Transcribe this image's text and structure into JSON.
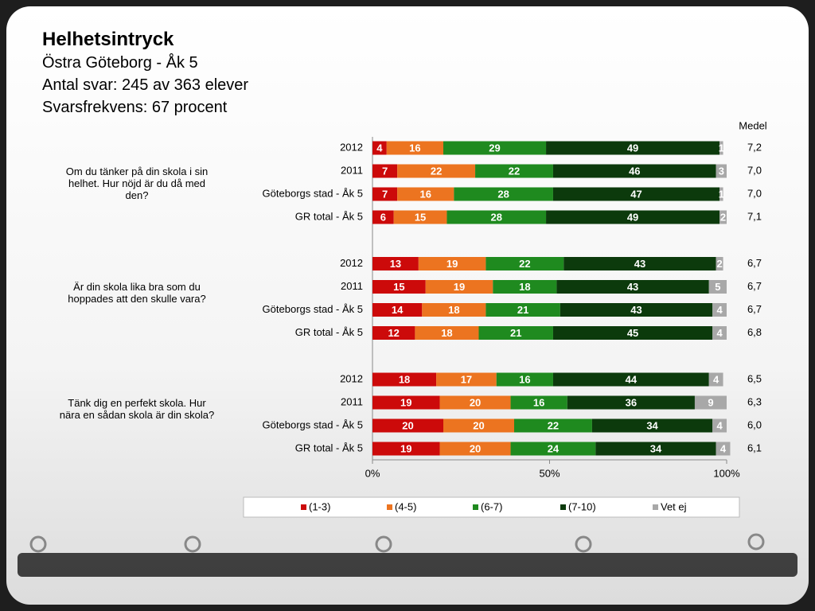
{
  "chart_data": {
    "type": "bar",
    "orientation": "horizontal",
    "stacked": true,
    "title": "Helhetsintryck",
    "subtitles": [
      "Östra Göteborg - Åk 5",
      "Antal svar: 245 av 363 elever",
      "Svarsfrekvens: 67 procent"
    ],
    "questions": [
      "Om du tänker på din skola i sin helhet. Hur nöjd är du då med den?",
      "Är din skola lika bra som du hoppades att den skulle vara?",
      "Tänk dig en perfekt skola. Hur nära en sådan skola är din skola?"
    ],
    "categories": [
      "2012",
      "2011",
      "Göteborgs stad - Åk 5",
      "GR total - Åk 5",
      "2012",
      "2011",
      "Göteborgs stad - Åk 5",
      "GR total - Åk 5",
      "2012",
      "2011",
      "Göteborgs stad - Åk 5",
      "GR total - Åk 5"
    ],
    "series": [
      {
        "name": "(1-3)",
        "color": "#cc0a0a",
        "values": [
          4,
          7,
          7,
          6,
          13,
          15,
          14,
          12,
          18,
          19,
          20,
          19
        ]
      },
      {
        "name": "(4-5)",
        "color": "#ec7420",
        "values": [
          16,
          22,
          16,
          15,
          19,
          19,
          18,
          18,
          17,
          20,
          20,
          20
        ]
      },
      {
        "name": "(6-7)",
        "color": "#1f8a1f",
        "values": [
          29,
          22,
          28,
          28,
          22,
          18,
          21,
          21,
          16,
          16,
          22,
          24
        ]
      },
      {
        "name": "(7-10)",
        "color": "#0c3a0c",
        "values": [
          49,
          46,
          47,
          49,
          43,
          43,
          43,
          45,
          44,
          36,
          34,
          34
        ]
      },
      {
        "name": "Vet ej",
        "color": "#a8a8a8",
        "values": [
          1,
          3,
          1,
          2,
          2,
          5,
          4,
          4,
          4,
          9,
          4,
          4
        ]
      }
    ],
    "medel": {
      "title": "Medel",
      "values": [
        7.2,
        7.0,
        7.0,
        7.1,
        6.7,
        6.7,
        6.7,
        6.8,
        6.5,
        6.3,
        6.0,
        6.1
      ],
      "value_labels": [
        "7,2",
        "7,0",
        "7,0",
        "7,1",
        "6,7",
        "6,7",
        "6,7",
        "6,8",
        "6,5",
        "6,3",
        "6,0",
        "6,1"
      ]
    },
    "xlim": [
      0,
      100
    ],
    "xticks": [
      {
        "value": 0,
        "label": "0%"
      },
      {
        "value": 50,
        "label": "50%"
      },
      {
        "value": 100,
        "label": "100%"
      }
    ],
    "grid": false,
    "legend": "bottom"
  }
}
